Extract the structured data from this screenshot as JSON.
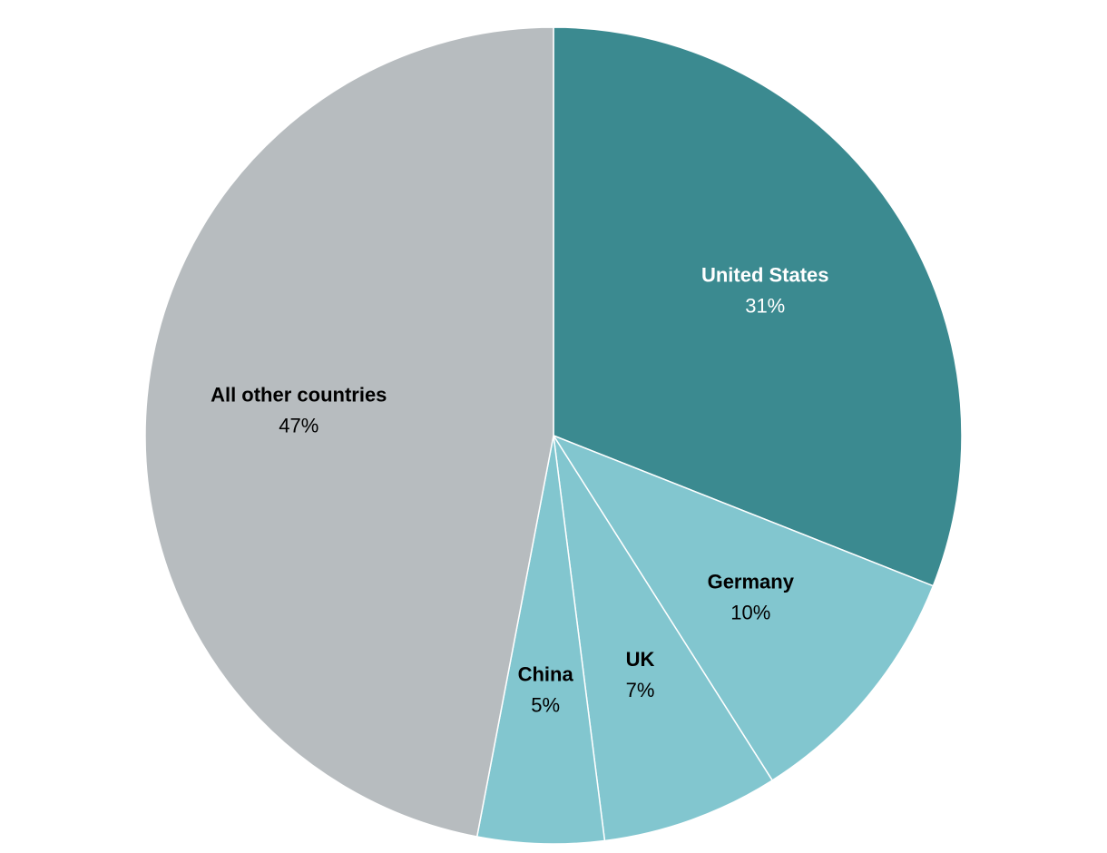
{
  "chart_data": {
    "type": "pie",
    "categories": [
      "United States",
      "Germany",
      "UK",
      "China",
      "All other countries"
    ],
    "values": [
      31,
      10,
      7,
      5,
      47
    ],
    "value_labels": [
      "31%",
      "10%",
      "7%",
      "5%",
      "47%"
    ],
    "colors": [
      "#3b8a90",
      "#82c6cf",
      "#82c6cf",
      "#82c6cf",
      "#b7bcbf"
    ]
  }
}
